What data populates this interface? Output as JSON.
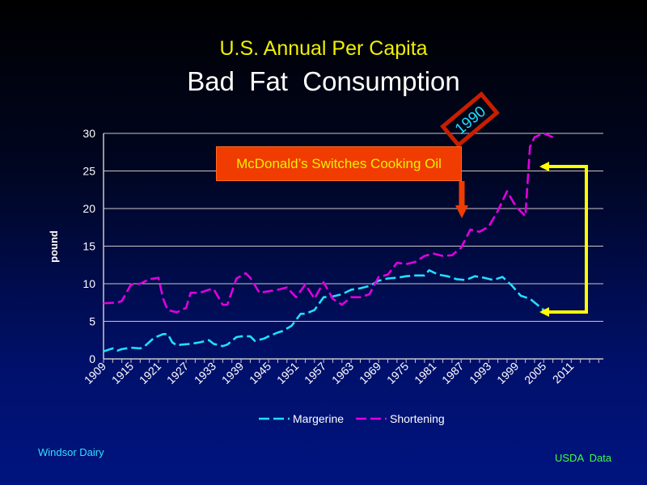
{
  "title": "U.S. Annual Per Capita",
  "subtitle": "Bad  Fat  Consumption",
  "annotation_callout": "McDonald’s Switches Cooking Oil",
  "annotation_year": "1990",
  "footer_left": "Windsor  Dairy",
  "footer_right": "USDA  Data",
  "colors": {
    "margarine": "#20e0ff",
    "shortening": "#e000e0",
    "callout_bg": "#f03c00",
    "callout_border": "#c81e00",
    "arrow_yellow": "#ffff00",
    "arrow_red": "#f03c00"
  },
  "chart_data": {
    "type": "line",
    "title": "U.S. Annual Per Capita Bad  Fat  Consumption",
    "xlabel": "",
    "ylabel": "pound",
    "ylim": [
      0,
      30
    ],
    "yticks": [
      0,
      5,
      10,
      15,
      20,
      25,
      30
    ],
    "xlim": [
      1909,
      2018
    ],
    "xticks": [
      "1909",
      "1915",
      "1921",
      "1927",
      "1933",
      "1939",
      "1945",
      "1951",
      "1957",
      "1963",
      "1969",
      "1975",
      "1981",
      "1987",
      "1993",
      "1999",
      "2005",
      "2011"
    ],
    "grid": "horizontal",
    "legend": "bottom",
    "line_style": "dashed",
    "series": [
      {
        "name": "Margerine",
        "x": [
          1909,
          1911,
          1912,
          1913,
          1915,
          1917,
          1918,
          1920,
          1922,
          1923,
          1924,
          1925,
          1926,
          1928,
          1930,
          1932,
          1933,
          1935,
          1936,
          1938,
          1939,
          1941,
          1942,
          1944,
          1945,
          1947,
          1948,
          1950,
          1952,
          1953,
          1955,
          1957,
          1959,
          1961,
          1963,
          1965,
          1967,
          1969,
          1971,
          1973,
          1975,
          1977,
          1979,
          1980,
          1982,
          1984,
          1986,
          1988,
          1990,
          1992,
          1994,
          1996,
          1998,
          2000,
          2002,
          2004,
          2006
        ],
        "y": [
          1,
          1.4,
          1.1,
          1.3,
          1.5,
          1.4,
          1.7,
          2.8,
          3.3,
          3.3,
          2.2,
          1.8,
          1.9,
          2,
          2.2,
          2.5,
          2,
          1.7,
          1.9,
          2.9,
          3,
          3,
          2.4,
          2.7,
          3,
          3.5,
          3.7,
          4.4,
          6,
          6,
          6.5,
          8.2,
          8.3,
          8.6,
          9.2,
          9.4,
          9.7,
          10.4,
          10.7,
          10.8,
          11,
          11.1,
          11.1,
          11.8,
          11.2,
          11,
          10.6,
          10.5,
          11,
          10.8,
          10.5,
          10.9,
          9.8,
          8.4,
          8,
          7,
          6
        ],
        "color": "#20e0ff"
      },
      {
        "name": "Shortening",
        "x": [
          1909,
          1912,
          1913,
          1915,
          1917,
          1919,
          1921,
          1922,
          1923,
          1925,
          1927,
          1928,
          1930,
          1932,
          1933,
          1935,
          1936,
          1938,
          1940,
          1941,
          1943,
          1945,
          1947,
          1949,
          1951,
          1953,
          1955,
          1957,
          1959,
          1961,
          1963,
          1965,
          1967,
          1969,
          1971,
          1973,
          1975,
          1977,
          1979,
          1981,
          1983,
          1985,
          1987,
          1989,
          1991,
          1993,
          1995,
          1997,
          1999,
          2001,
          2002,
          2003,
          2005,
          2007
        ],
        "y": [
          7.4,
          7.5,
          7.7,
          9.9,
          10,
          10.6,
          10.8,
          8,
          6.5,
          6.2,
          6.8,
          8.8,
          8.8,
          9.2,
          9.3,
          7.2,
          7.2,
          10.7,
          11.4,
          10.8,
          8.8,
          9,
          9.2,
          9.5,
          8.2,
          9.9,
          8,
          10.2,
          8,
          7.2,
          8.2,
          8.2,
          8.6,
          10.9,
          11.2,
          12.8,
          12.6,
          12.9,
          13.7,
          14,
          13.7,
          13.8,
          14.8,
          17.2,
          16.9,
          17.6,
          19.7,
          22.3,
          20.2,
          19,
          28.2,
          29.5,
          30,
          29.5
        ],
        "color": "#e000e0"
      }
    ]
  }
}
